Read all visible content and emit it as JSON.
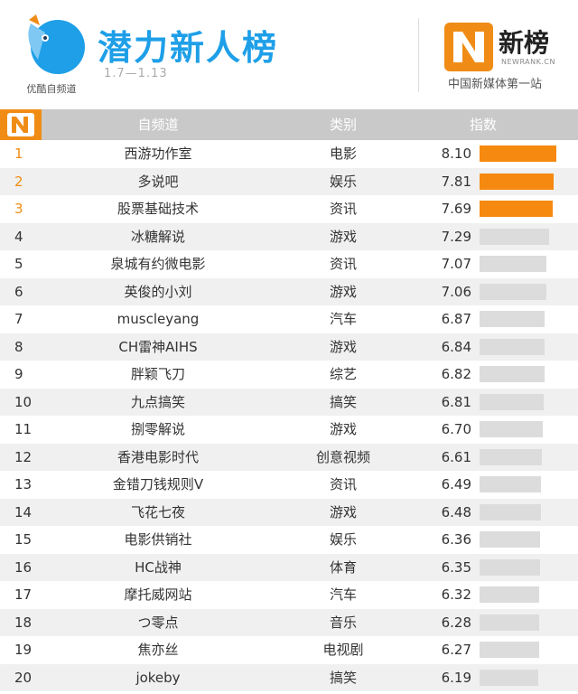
{
  "header": {
    "logo_caption": "优酷自频道",
    "title": "潜力新人榜",
    "date_range": "1.7—1.13",
    "brand_name": "新榜",
    "brand_en": "NEWRANK.CN",
    "brand_tagline": "中国新媒体第一站"
  },
  "table": {
    "headers": [
      "自频道",
      "类别",
      "指数"
    ]
  },
  "chart_data": {
    "type": "bar",
    "value_range": [
      0,
      8.1
    ],
    "highlight_color": "#f6890f",
    "default_color": "#dcdcdc",
    "rows": [
      {
        "rank": "1",
        "name": "西游功作室",
        "category": "电影",
        "value": 8.1
      },
      {
        "rank": "2",
        "name": "多说吧",
        "category": "娱乐",
        "value": 7.81
      },
      {
        "rank": "3",
        "name": "股票基础技术",
        "category": "资讯",
        "value": 7.69
      },
      {
        "rank": "4",
        "name": "冰糖解说",
        "category": "游戏",
        "value": 7.29
      },
      {
        "rank": "5",
        "name": "泉城有约微电影",
        "category": "资讯",
        "value": 7.07
      },
      {
        "rank": "6",
        "name": "英俊的小刘",
        "category": "游戏",
        "value": 7.06
      },
      {
        "rank": "7",
        "name": "muscleyang",
        "category": "汽车",
        "value": 6.87
      },
      {
        "rank": "8",
        "name": "CH雷神AIHS",
        "category": "游戏",
        "value": 6.84
      },
      {
        "rank": "9",
        "name": "胖颖飞刀",
        "category": "综艺",
        "value": 6.82
      },
      {
        "rank": "10",
        "name": "九点搞笑",
        "category": "搞笑",
        "value": 6.81
      },
      {
        "rank": "11",
        "name": "捌零解说",
        "category": "游戏",
        "value": 6.7
      },
      {
        "rank": "12",
        "name": "香港电影时代",
        "category": "创意视频",
        "value": 6.61
      },
      {
        "rank": "13",
        "name": "金错刀钱规则V",
        "category": "资讯",
        "value": 6.49
      },
      {
        "rank": "14",
        "name": "飞花七夜",
        "category": "游戏",
        "value": 6.48
      },
      {
        "rank": "15",
        "name": "电影供销社",
        "category": "娱乐",
        "value": 6.36
      },
      {
        "rank": "16",
        "name": "HC战神",
        "category": "体育",
        "value": 6.35
      },
      {
        "rank": "17",
        "name": "摩托威网站",
        "category": "汽车",
        "value": 6.32
      },
      {
        "rank": "18",
        "name": "つ零点",
        "category": "音乐",
        "value": 6.28
      },
      {
        "rank": "19",
        "name": "焦亦丝",
        "category": "电视剧",
        "value": 6.27
      },
      {
        "rank": "20",
        "name": "jokeby",
        "category": "搞笑",
        "value": 6.19
      }
    ]
  }
}
